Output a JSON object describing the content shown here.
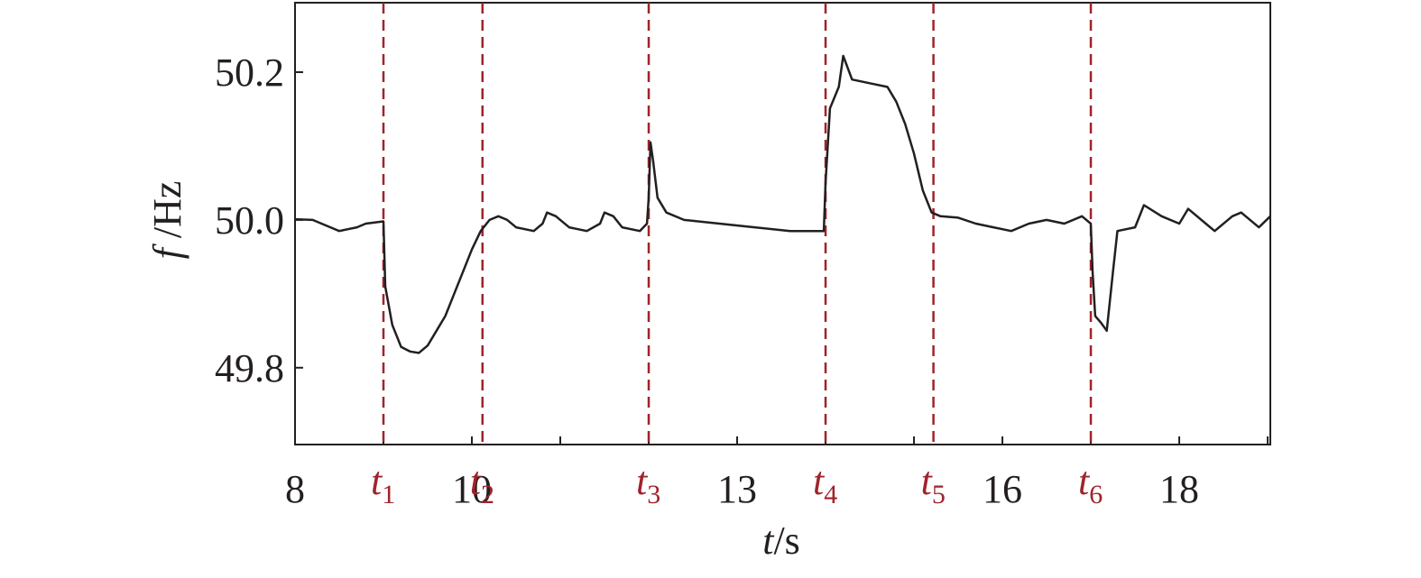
{
  "chart_data": {
    "type": "line",
    "xlabel_var": "t",
    "xlabel_unit": "/s",
    "ylabel_var": "f",
    "ylabel_unit": " /Hz",
    "xlim": [
      8,
      19.03
    ],
    "ylim": [
      49.696,
      50.294
    ],
    "xticks": [
      8,
      10,
      13,
      16,
      18
    ],
    "minor_xticks": [
      9,
      11,
      12,
      14,
      15,
      17,
      19
    ],
    "yticks": [
      49.8,
      {
        "value": 50,
        "label": "50.0"
      },
      50.2
    ],
    "color": "#231f20",
    "event_color": "#a0232b",
    "events": [
      {
        "x": 9,
        "symbol": "t",
        "index": "1"
      },
      {
        "x": 10.12,
        "symbol": "t",
        "index": "2"
      },
      {
        "x": 12,
        "symbol": "t",
        "index": "3"
      },
      {
        "x": 14,
        "symbol": "t",
        "index": "4"
      },
      {
        "x": 15.22,
        "symbol": "t",
        "index": "5"
      },
      {
        "x": 17,
        "symbol": "t",
        "index": "6"
      }
    ],
    "x": [
      8.0,
      8.2,
      8.3,
      8.5,
      8.7,
      8.8,
      9.0,
      9.02,
      9.1,
      9.2,
      9.3,
      9.4,
      9.5,
      9.6,
      9.7,
      9.8,
      9.9,
      10.0,
      10.1,
      10.2,
      10.3,
      10.4,
      10.5,
      10.7,
      10.8,
      10.85,
      10.95,
      11.1,
      11.3,
      11.45,
      11.5,
      11.6,
      11.7,
      11.9,
      11.98,
      12.0,
      12.02,
      12.05,
      12.1,
      12.2,
      12.4,
      12.8,
      13.2,
      13.6,
      13.98,
      14.0,
      14.05,
      14.15,
      14.2,
      14.3,
      14.5,
      14.7,
      14.8,
      14.9,
      15.0,
      15.1,
      15.2,
      15.3,
      15.5,
      15.7,
      15.9,
      16.1,
      16.3,
      16.5,
      16.7,
      16.9,
      17.0,
      17.02,
      17.05,
      17.12,
      17.18,
      17.25,
      17.3,
      17.5,
      17.6,
      17.8,
      18.0,
      18.1,
      18.3,
      18.4,
      18.6,
      18.7,
      18.9,
      19.03
    ],
    "values": [
      50.001,
      50.0,
      49.995,
      49.985,
      49.99,
      49.995,
      49.998,
      49.91,
      49.858,
      49.828,
      49.822,
      49.82,
      49.83,
      49.85,
      49.87,
      49.9,
      49.93,
      49.96,
      49.985,
      50.0,
      50.005,
      50.0,
      49.99,
      49.985,
      49.995,
      50.01,
      50.005,
      49.99,
      49.985,
      49.995,
      50.01,
      50.005,
      49.99,
      49.985,
      49.995,
      50.03,
      50.105,
      50.08,
      50.03,
      50.01,
      50.0,
      49.995,
      49.99,
      49.985,
      49.985,
      50.05,
      50.151,
      50.18,
      50.222,
      50.19,
      50.185,
      50.18,
      50.16,
      50.13,
      50.09,
      50.04,
      50.01,
      50.005,
      50.003,
      49.995,
      49.99,
      49.985,
      49.995,
      50.0,
      49.995,
      50.005,
      49.995,
      49.93,
      49.87,
      49.86,
      49.85,
      49.93,
      49.985,
      49.99,
      50.02,
      50.005,
      49.995,
      50.015,
      49.995,
      49.985,
      50.005,
      50.01,
      49.99,
      50.005
    ]
  }
}
